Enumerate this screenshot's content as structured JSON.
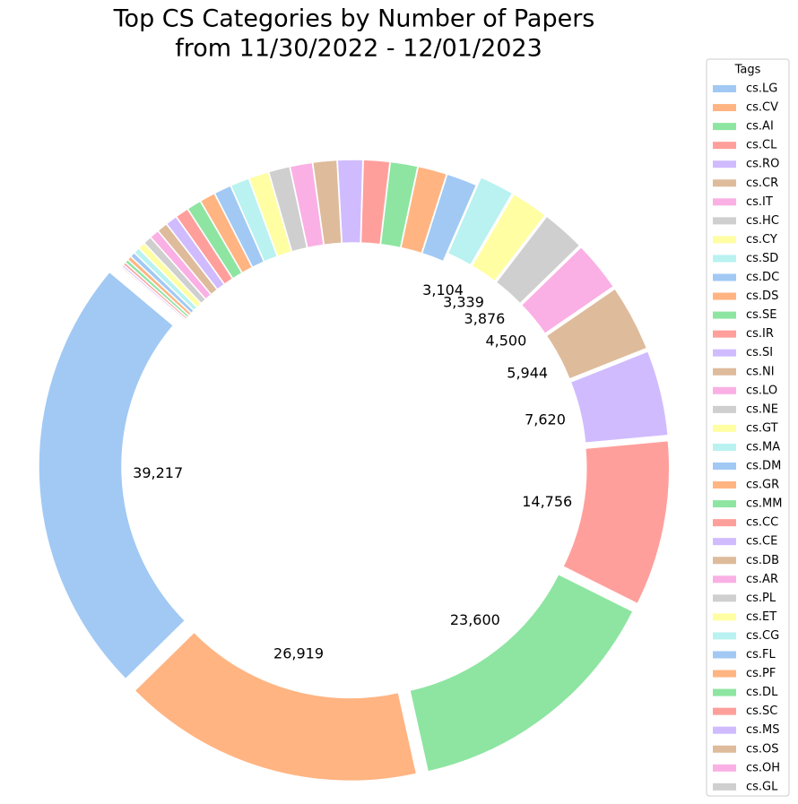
{
  "chart_data": {
    "type": "donut",
    "title": [
      "Top CS Categories by Number of Papers",
      "from 11/30/2022 - 12/01/2023"
    ],
    "legend_title": "Tags",
    "legend": "right",
    "categories": [
      "cs.LG",
      "cs.CV",
      "cs.AI",
      "cs.CL",
      "cs.RO",
      "cs.CR",
      "cs.IT",
      "cs.HC",
      "cs.CY",
      "cs.SD",
      "cs.DC",
      "cs.DS",
      "cs.SE",
      "cs.IR",
      "cs.SI",
      "cs.NI",
      "cs.LO",
      "cs.NE",
      "cs.GT",
      "cs.MA",
      "cs.DM",
      "cs.GR",
      "cs.MM",
      "cs.CC",
      "cs.CE",
      "cs.DB",
      "cs.AR",
      "cs.PL",
      "cs.ET",
      "cs.CG",
      "cs.FL",
      "cs.PF",
      "cs.DL",
      "cs.SC",
      "cs.MS",
      "cs.OS",
      "cs.OH",
      "cs.GL"
    ],
    "values": [
      39217,
      26919,
      23600,
      14756,
      7620,
      5944,
      4500,
      3876,
      3339,
      3104,
      2750,
      2600,
      2450,
      2350,
      2250,
      2150,
      2000,
      1900,
      1800,
      1700,
      1550,
      1400,
      1300,
      1200,
      1050,
      950,
      850,
      750,
      650,
      550,
      450,
      380,
      320,
      260,
      200,
      150,
      100,
      60
    ],
    "value_labels": [
      "39,217",
      "26,919",
      "23,600",
      "14,756",
      "7,620",
      "5,944",
      "4,500",
      "3,876",
      "3,339",
      "3,104",
      null,
      null,
      null,
      null,
      null,
      null,
      null,
      null,
      null,
      null,
      null,
      null,
      null,
      null,
      null,
      null,
      null,
      null,
      null,
      null,
      null,
      null,
      null,
      null,
      null,
      null,
      null,
      null
    ],
    "colors": [
      "#a1c9f4",
      "#ffb482",
      "#8de5a1",
      "#ff9f9b",
      "#d0bbff",
      "#debb9b",
      "#fab0e4",
      "#cfcfcf",
      "#fffea3",
      "#b9f2f0"
    ],
    "start_angle": 140
  }
}
